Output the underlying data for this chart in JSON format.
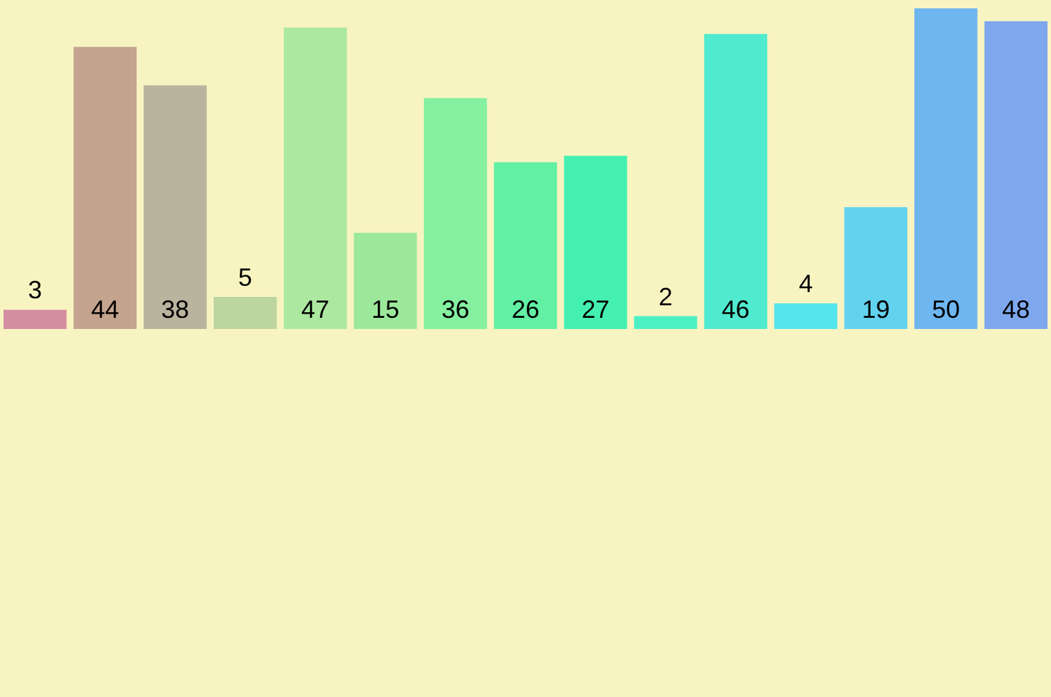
{
  "chart_data": {
    "type": "bar",
    "categories": [
      null,
      null,
      null,
      null,
      null,
      null,
      null,
      null,
      null,
      null,
      null,
      null,
      null,
      null,
      null
    ],
    "values": [
      3,
      44,
      38,
      5,
      47,
      15,
      36,
      26,
      27,
      2,
      46,
      4,
      19,
      50,
      48
    ],
    "colors": [
      "#d48ea0",
      "#c4a48e",
      "#b8b49e",
      "#bcd4a0",
      "#ace8a0",
      "#9ce89a",
      "#84f0a0",
      "#62f0a4",
      "#44f0b0",
      "#4cf0c4",
      "#50ead0",
      "#54e6ec",
      "#62d2ee",
      "#6eb6f0",
      "#7ea8ee"
    ],
    "data_labels": true,
    "legend": false
  }
}
